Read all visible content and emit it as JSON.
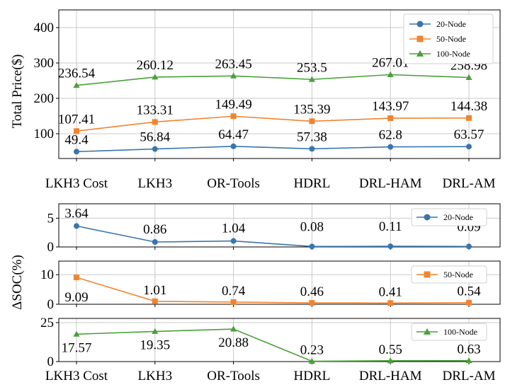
{
  "chart_data": [
    {
      "type": "line",
      "ylabel": "Total Price($)",
      "xlabel": "",
      "categories": [
        "LKH3 Cost",
        "LKH3",
        "OR-Tools",
        "HDRL",
        "DRL-HAM",
        "DRL-AM"
      ],
      "ylim": [
        30,
        450
      ],
      "yticks": [
        100,
        200,
        300,
        400
      ],
      "grid": true,
      "legend_position": "top-right",
      "series": [
        {
          "name": "20-Node",
          "color": "#3a75ad",
          "marker": "circle",
          "values": [
            49.4,
            56.84,
            64.47,
            57.38,
            62.8,
            63.57
          ],
          "labels": [
            "49.4",
            "56.84",
            "64.47",
            "57.38",
            "62.8",
            "63.57"
          ]
        },
        {
          "name": "50-Node",
          "color": "#f08430",
          "marker": "square",
          "values": [
            107.41,
            133.31,
            149.49,
            135.39,
            143.97,
            144.38
          ],
          "labels": [
            "107.41",
            "133.31",
            "149.49",
            "135.39",
            "143.97",
            "144.38"
          ]
        },
        {
          "name": "100-Node",
          "color": "#4aa03a",
          "marker": "triangle",
          "values": [
            236.54,
            260.12,
            263.45,
            253.5,
            267.01,
            258.98
          ],
          "labels": [
            "236.54",
            "260.12",
            "263.45",
            "253.5",
            "267.01",
            "258.98"
          ]
        }
      ]
    },
    {
      "type": "line",
      "ylabel": "ΔSOC(%)",
      "xlabel": "",
      "categories": [
        "LKH3 Cost",
        "LKH3",
        "OR-Tools",
        "HDRL",
        "DRL-HAM",
        "DRL-AM"
      ],
      "grid": true,
      "panels": [
        {
          "series": {
            "name": "20-Node",
            "color": "#3a75ad",
            "marker": "circle",
            "values": [
              3.64,
              0.86,
              1.04,
              0.08,
              0.11,
              0.09
            ],
            "labels": [
              "3.64",
              "0.86",
              "1.04",
              "0.08",
              "0.11",
              "0.09"
            ]
          },
          "ylim": [
            0,
            7.5
          ],
          "yticks": [
            0,
            5
          ],
          "ytick_labels": [
            "0",
            "5"
          ],
          "legend_position": "top-right"
        },
        {
          "series": {
            "name": "50-Node",
            "color": "#f08430",
            "marker": "square",
            "values": [
              9.09,
              1.01,
              0.74,
              0.46,
              0.41,
              0.54
            ],
            "labels": [
              "9.09",
              "1.01",
              "0.74",
              "0.46",
              "0.41",
              "0.54"
            ]
          },
          "ylim": [
            0,
            14.6
          ],
          "yticks": [
            0,
            10
          ],
          "ytick_labels": [
            "0",
            "10"
          ],
          "legend_position": "top-right"
        },
        {
          "series": {
            "name": "100-Node",
            "color": "#4aa03a",
            "marker": "triangle",
            "values": [
              17.57,
              19.35,
              20.88,
              0.23,
              0.55,
              0.63
            ],
            "labels": [
              "17.57",
              "19.35",
              "20.88",
              "0.23",
              "0.55",
              "0.63"
            ]
          },
          "ylim": [
            0,
            27.7
          ],
          "yticks": [
            0,
            25
          ],
          "ytick_labels": [
            "0",
            "25"
          ],
          "legend_position": "top-right"
        }
      ]
    }
  ]
}
